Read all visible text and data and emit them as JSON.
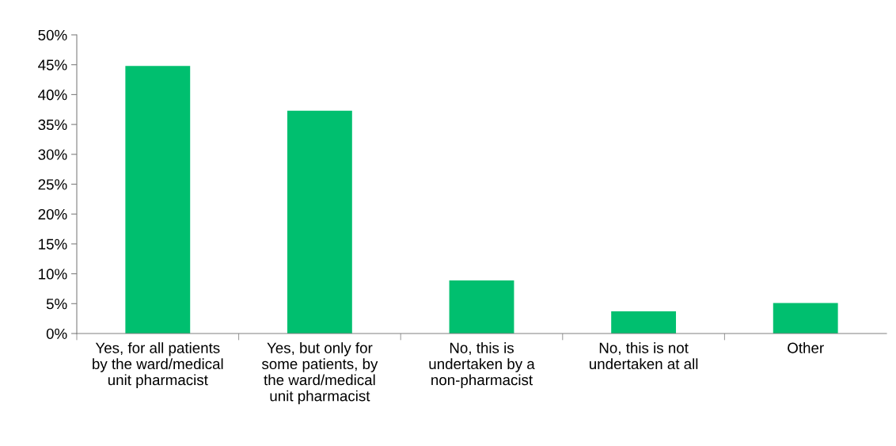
{
  "chart_data": {
    "type": "bar",
    "categories": [
      "Yes, for all patients\nby the ward/medical\nunit pharmacist",
      "Yes, but only for\nsome patients, by\nthe ward/medical\nunit pharmacist",
      "No, this is\nundertaken by a\nnon-pharmacist",
      "No, this is not\nundertaken at all",
      "Other"
    ],
    "values": [
      44.8,
      37.3,
      8.9,
      3.7,
      5.1
    ],
    "color": "#00bf6f",
    "ylim": [
      0,
      50
    ],
    "yticks": [
      {
        "value": 0,
        "label": "0%"
      },
      {
        "value": 5,
        "label": "5%"
      },
      {
        "value": 10,
        "label": "10%"
      },
      {
        "value": 15,
        "label": "15%"
      },
      {
        "value": 20,
        "label": "20%"
      },
      {
        "value": 25,
        "label": "25%"
      },
      {
        "value": 30,
        "label": "30%"
      },
      {
        "value": 35,
        "label": "35%"
      },
      {
        "value": 40,
        "label": "40%"
      },
      {
        "value": 45,
        "label": "45%"
      },
      {
        "value": 50,
        "label": "50%"
      }
    ],
    "grid": false,
    "legend": false
  }
}
